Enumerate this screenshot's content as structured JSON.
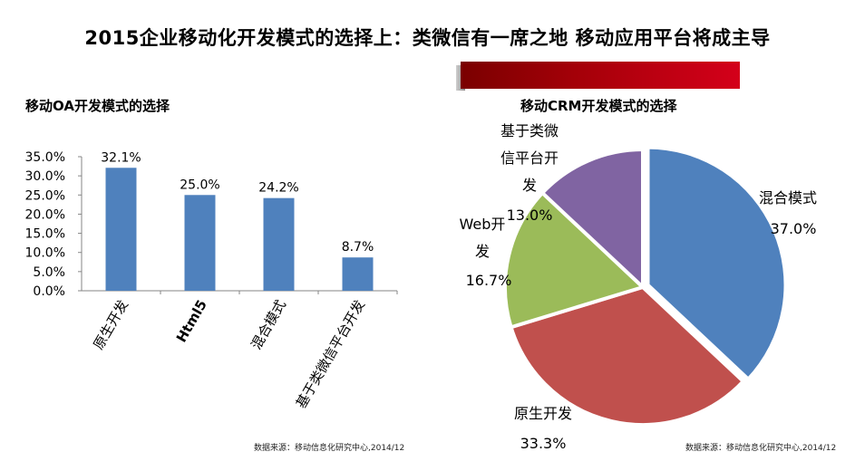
{
  "page": {
    "title": "2015企业移动化开发模式的选择上：类微信有一席之地 移动应用平台将成主导"
  },
  "colors": {
    "bar": "#4f81bd",
    "pie_blue": "#4f81bd",
    "pie_red": "#c0504d",
    "pie_green": "#9bbb59",
    "pie_purple": "#8064a2",
    "accent_red": "#c00018"
  },
  "chart_data": [
    {
      "type": "bar",
      "title": "移动OA开发模式的选择",
      "categories": [
        "原生开发",
        "Html5",
        "混合模式",
        "基于类微信平台开发"
      ],
      "values": [
        32.1,
        25.0,
        24.2,
        8.7
      ],
      "value_labels": [
        "32.1%",
        "25.0%",
        "24.2%",
        "8.7%"
      ],
      "y_ticks": [
        "35.0%",
        "30.0%",
        "25.0%",
        "20.0%",
        "15.0%",
        "10.0%",
        "5.0%",
        "0.0%"
      ],
      "ylim": [
        0,
        35
      ],
      "xlabel": "",
      "ylabel": "",
      "grid": false,
      "source": "数据来源：移动信息化研究中心,2014/12"
    },
    {
      "type": "pie",
      "title": "移动CRM开发模式的选择",
      "slices": [
        {
          "label_lines": [
            "混合模式"
          ],
          "value": 37.0,
          "percent": "37.0%",
          "exploded": true
        },
        {
          "label_lines": [
            "原生开发"
          ],
          "value": 33.3,
          "percent": "33.3%",
          "exploded": false
        },
        {
          "label_lines": [
            "Web开",
            "发"
          ],
          "value": 16.7,
          "percent": "16.7%",
          "exploded": false
        },
        {
          "label_lines": [
            "基于类微",
            "信平台开",
            "发"
          ],
          "value": 13.0,
          "percent": "13.0%",
          "exploded": false
        }
      ],
      "source": "数据来源：移动信息化研究中心,2014/12"
    }
  ]
}
